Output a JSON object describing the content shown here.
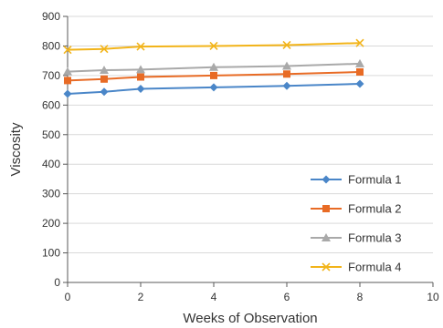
{
  "chart_data": {
    "type": "line",
    "xlabel": "Weeks of Observation",
    "ylabel": "Viscosity",
    "xlim": [
      0,
      10
    ],
    "ylim": [
      0,
      900
    ],
    "x_ticks": [
      0,
      2,
      4,
      6,
      8,
      10
    ],
    "y_ticks": [
      0,
      100,
      200,
      300,
      400,
      500,
      600,
      700,
      800,
      900
    ],
    "grid": "horizontal",
    "legend_position": "bottom-right",
    "x": [
      0,
      1,
      2,
      4,
      6,
      8
    ],
    "series": [
      {
        "name": "Formula 1",
        "color": "#4a86c8",
        "marker": "diamond",
        "values": [
          638,
          645,
          655,
          660,
          665,
          672
        ]
      },
      {
        "name": "Formula 2",
        "color": "#e86b25",
        "marker": "square",
        "values": [
          683,
          688,
          695,
          700,
          705,
          712
        ]
      },
      {
        "name": "Formula 3",
        "color": "#a9a9a9",
        "marker": "triangle",
        "values": [
          713,
          718,
          720,
          728,
          732,
          740
        ]
      },
      {
        "name": "Formula 4",
        "color": "#f2b41a",
        "marker": "x",
        "values": [
          787,
          790,
          798,
          800,
          803,
          810
        ]
      }
    ]
  }
}
